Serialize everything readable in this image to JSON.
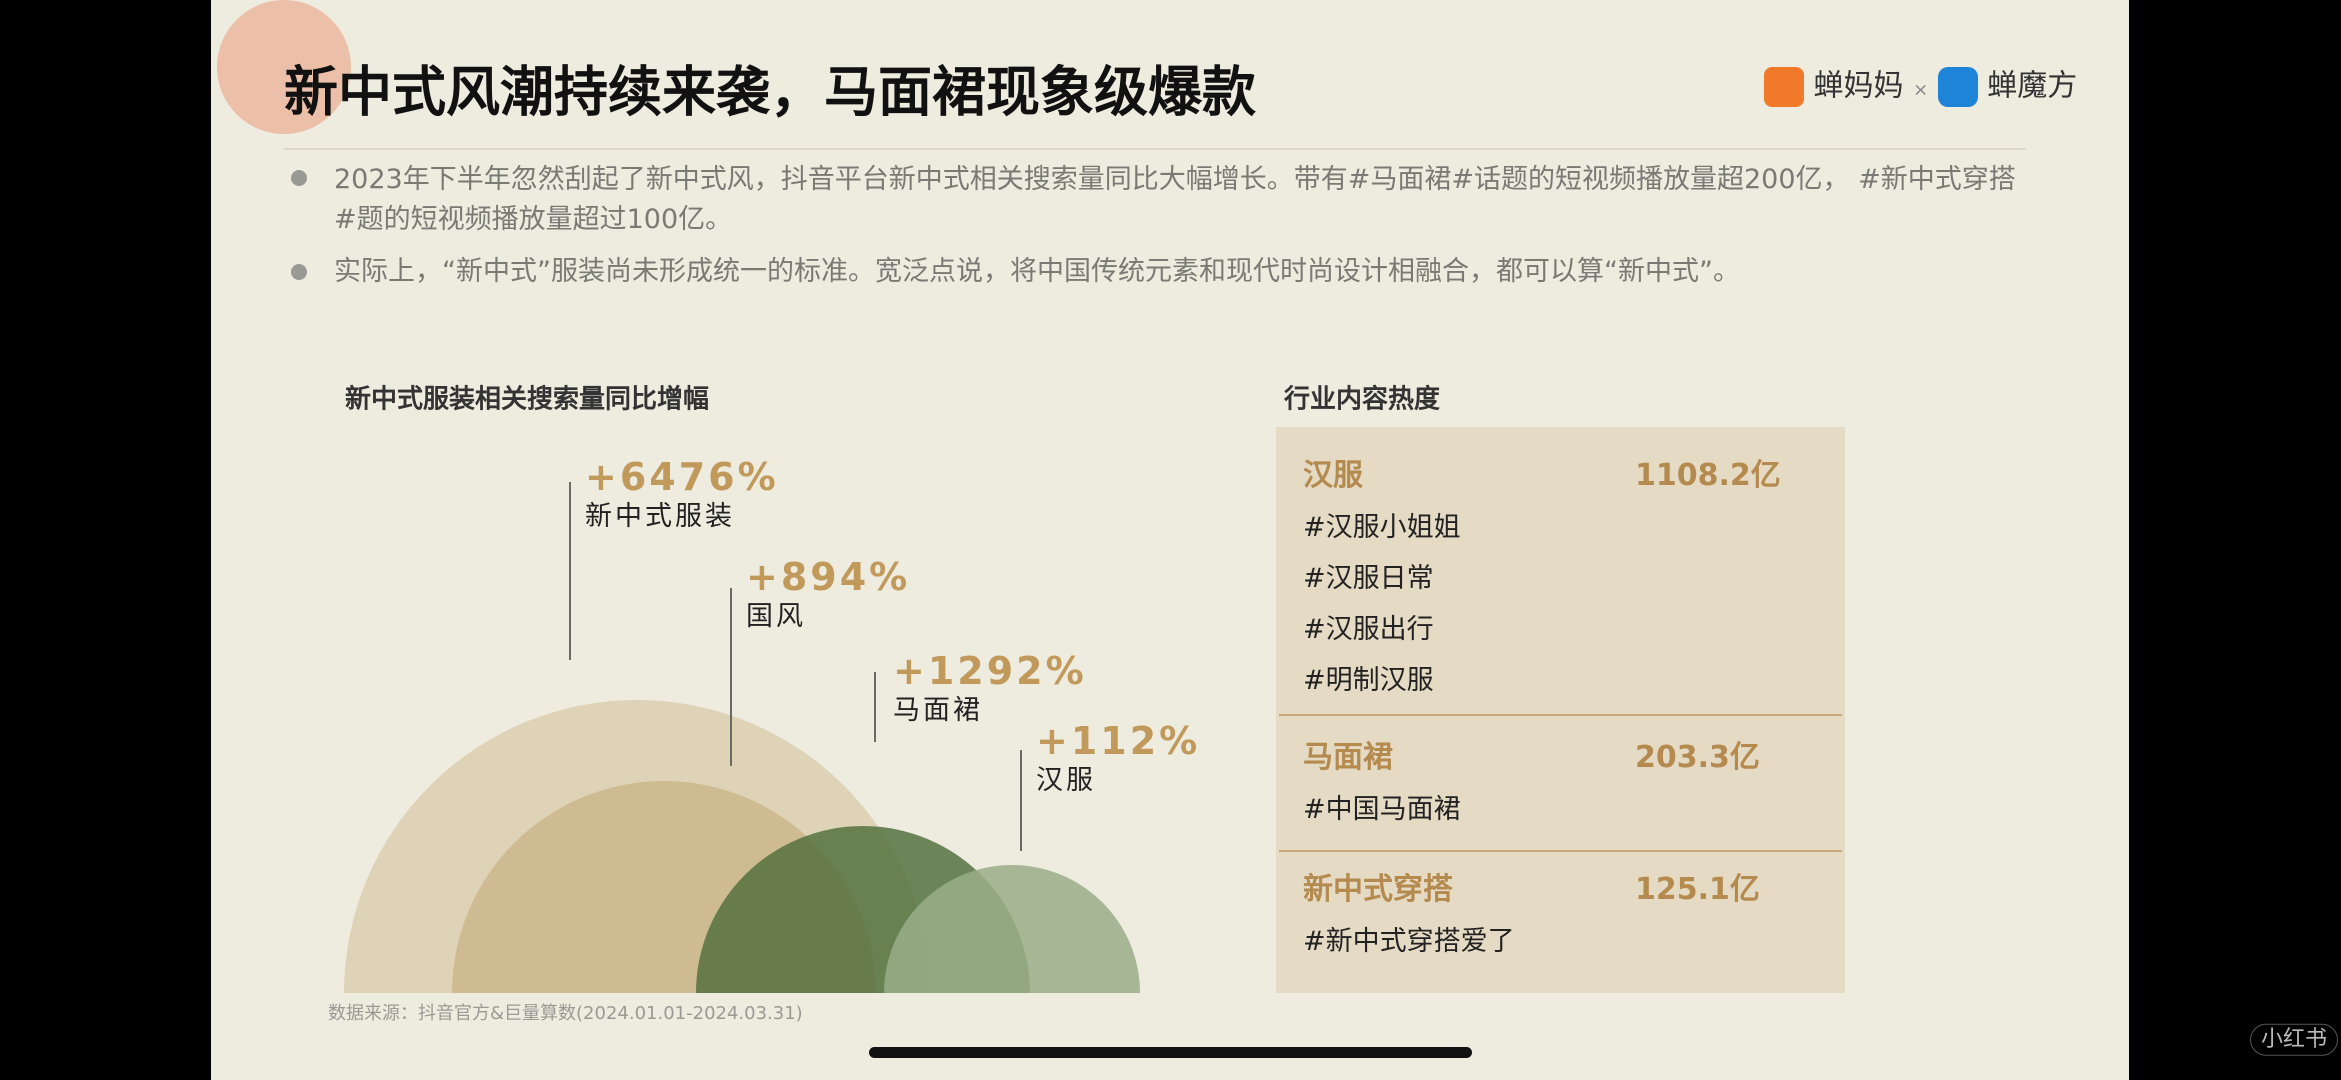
{
  "header": {
    "title": "新中式风潮持续来袭，马面裙现象级爆款",
    "logos": [
      "蝉妈妈",
      "×",
      "蝉魔方"
    ]
  },
  "bullets": [
    "2023年下半年忽然刮起了新中式风，抖音平台新中式相关搜索量同比大幅增长。带有#马面裙#话题的短视频播放量超200亿， #新中式穿搭#题的短视频播放量超过100亿。",
    "实际上，“新中式”服装尚未形成统一的标准。宽泛点说，将中国传统元素和现代时尚设计相融合，都可以算“新中式”。"
  ],
  "left_chart": {
    "title": "新中式服装相关搜索量同比增幅",
    "items": [
      {
        "value_label": "+6476%",
        "name": "新中式服装"
      },
      {
        "value_label": "+894%",
        "name": "国风"
      },
      {
        "value_label": "+1292%",
        "name": "马面裙"
      },
      {
        "value_label": "+112%",
        "name": "汉服"
      }
    ],
    "source": "数据来源：抖音官方&巨量算数(2024.01.01-2024.03.31)"
  },
  "right_panel": {
    "title": "行业内容热度",
    "rows": [
      {
        "name": "汉服",
        "value": "1108.2亿",
        "tags": [
          "#汉服小姐姐",
          "#汉服日常",
          "#汉服出行",
          "#明制汉服"
        ]
      },
      {
        "name": "马面裙",
        "value": "203.3亿",
        "tags": [
          "#中国马面裙"
        ]
      },
      {
        "name": "新中式穿搭",
        "value": "125.1亿",
        "tags": [
          "#新中式穿搭爱了"
        ]
      }
    ]
  },
  "watermark": "小红书"
}
